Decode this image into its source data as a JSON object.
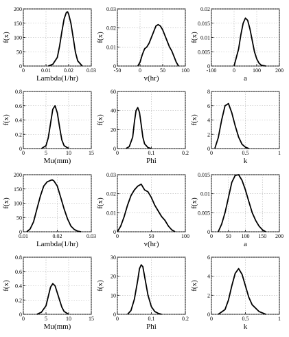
{
  "chart_data": [
    {
      "type": "line",
      "xlabel": "Lambda(1/hr)",
      "ylabel": "f(x)",
      "xlim": [
        0,
        0.03
      ],
      "ylim": [
        0,
        200
      ],
      "xticks": [
        "0",
        "0.01",
        "0.02",
        "0.03"
      ],
      "yticks": [
        "0",
        "50",
        "100",
        "150",
        "200"
      ],
      "grid": true,
      "x": [
        0.011,
        0.013,
        0.015,
        0.016,
        0.017,
        0.018,
        0.019,
        0.0195,
        0.02,
        0.021,
        0.022,
        0.023,
        0.024,
        0.026
      ],
      "y": [
        0,
        6,
        30,
        70,
        120,
        165,
        188,
        190,
        182,
        150,
        100,
        48,
        18,
        0
      ]
    },
    {
      "type": "line",
      "xlabel": "v(hr)",
      "ylabel": "f(x)",
      "xlim": [
        -50,
        100
      ],
      "ylim": [
        0,
        0.03
      ],
      "xticks": [
        "-50",
        "0",
        "50",
        "100"
      ],
      "yticks": [
        "0",
        "0.01",
        "0.02",
        "0.03"
      ],
      "grid": true,
      "x": [
        -5,
        0,
        5,
        10,
        15,
        20,
        25,
        30,
        35,
        40,
        45,
        50,
        55,
        60,
        65,
        70,
        75,
        80,
        85
      ],
      "y": [
        0,
        0.002,
        0.006,
        0.009,
        0.01,
        0.012,
        0.015,
        0.018,
        0.021,
        0.0218,
        0.021,
        0.019,
        0.016,
        0.013,
        0.01,
        0.008,
        0.005,
        0.002,
        0
      ]
    },
    {
      "type": "line",
      "xlabel": "a",
      "ylabel": "f(x)",
      "xlim": [
        -100,
        200
      ],
      "ylim": [
        0,
        0.02
      ],
      "xticks": [
        "-100",
        "0",
        "100",
        "200"
      ],
      "yticks": [
        "0",
        "0.005",
        "0.01",
        "0.015",
        "0.02"
      ],
      "grid": true,
      "x": [
        0,
        10,
        20,
        30,
        40,
        50,
        60,
        70,
        80,
        90,
        100,
        110,
        120,
        140
      ],
      "y": [
        0,
        0.003,
        0.006,
        0.011,
        0.015,
        0.0168,
        0.016,
        0.013,
        0.009,
        0.005,
        0.0025,
        0.001,
        0.0003,
        0
      ]
    },
    {
      "type": "line",
      "xlabel": "Mu(mm)",
      "ylabel": "f(x)",
      "xlim": [
        0,
        15
      ],
      "ylim": [
        0,
        0.8
      ],
      "xticks": [
        "0",
        "5",
        "10",
        "15"
      ],
      "yticks": [
        "0",
        "0.2",
        "0.4",
        "0.6",
        "0.8"
      ],
      "grid": true,
      "x": [
        4,
        5,
        5.5,
        6,
        6.5,
        7,
        7.5,
        8,
        8.5,
        9,
        10
      ],
      "y": [
        0,
        0.04,
        0.15,
        0.35,
        0.55,
        0.6,
        0.5,
        0.3,
        0.12,
        0.04,
        0
      ]
    },
    {
      "type": "line",
      "xlabel": "Phi",
      "ylabel": "f(x)",
      "xlim": [
        0,
        0.2
      ],
      "ylim": [
        0,
        60
      ],
      "xticks": [
        "0",
        "0.1",
        "0.2"
      ],
      "yticks": [
        "0",
        "20",
        "40",
        "60"
      ],
      "grid": true,
      "x": [
        0.025,
        0.035,
        0.045,
        0.05,
        0.055,
        0.06,
        0.065,
        0.07,
        0.075,
        0.08,
        0.09,
        0.1
      ],
      "y": [
        0,
        2,
        12,
        28,
        40,
        43,
        38,
        25,
        12,
        5,
        1,
        0
      ]
    },
    {
      "type": "line",
      "xlabel": "k",
      "ylabel": "f(x)",
      "xlim": [
        0,
        1
      ],
      "ylim": [
        0,
        8
      ],
      "xticks": [
        "0",
        "0.5",
        "1"
      ],
      "yticks": [
        "0",
        "2",
        "4",
        "6",
        "8"
      ],
      "grid": true,
      "x": [
        0.05,
        0.1,
        0.15,
        0.2,
        0.25,
        0.3,
        0.35,
        0.4,
        0.45,
        0.5,
        0.55
      ],
      "y": [
        0,
        1.5,
        4,
        6,
        6.3,
        5,
        3.2,
        1.6,
        0.6,
        0.2,
        0
      ]
    },
    {
      "type": "line",
      "xlabel": "Lambda(1/hr)",
      "ylabel": "f(x)",
      "xlim": [
        0.01,
        0.03
      ],
      "ylim": [
        0,
        200
      ],
      "xticks": [
        "0.01",
        "0.02",
        "0.03"
      ],
      "yticks": [
        "0",
        "50",
        "100",
        "150",
        "200"
      ],
      "grid": true,
      "x": [
        0.011,
        0.012,
        0.013,
        0.014,
        0.015,
        0.016,
        0.017,
        0.018,
        0.0185,
        0.019,
        0.02,
        0.021,
        0.022,
        0.023,
        0.024,
        0.025,
        0.026,
        0.027
      ],
      "y": [
        0,
        10,
        35,
        80,
        125,
        160,
        175,
        180,
        182,
        178,
        160,
        120,
        80,
        45,
        20,
        8,
        2,
        0
      ]
    },
    {
      "type": "line",
      "xlabel": "v(hr)",
      "ylabel": "f(x)",
      "xlim": [
        0,
        100
      ],
      "ylim": [
        0,
        0.03
      ],
      "xticks": [
        "0",
        "50",
        "100"
      ],
      "yticks": [
        "0",
        "0.01",
        "0.02",
        "0.03"
      ],
      "grid": true,
      "x": [
        0,
        5,
        10,
        15,
        20,
        25,
        30,
        35,
        40,
        45,
        50,
        55,
        60,
        65,
        70,
        75,
        80,
        85
      ],
      "y": [
        0,
        0.003,
        0.008,
        0.014,
        0.019,
        0.022,
        0.024,
        0.025,
        0.022,
        0.021,
        0.018,
        0.014,
        0.011,
        0.008,
        0.006,
        0.003,
        0.001,
        0
      ]
    },
    {
      "type": "line",
      "xlabel": "a",
      "ylabel": "f(x)",
      "xlim": [
        0,
        200
      ],
      "ylim": [
        0,
        0.015
      ],
      "xticks": [
        "0",
        "50",
        "100",
        "150",
        "200"
      ],
      "yticks": [
        "0",
        "0.005",
        "0.01",
        "0.015"
      ],
      "grid": true,
      "x": [
        20,
        30,
        40,
        50,
        60,
        70,
        80,
        90,
        100,
        110,
        120,
        130,
        140,
        150,
        160
      ],
      "y": [
        0,
        0.002,
        0.005,
        0.009,
        0.013,
        0.0148,
        0.015,
        0.0135,
        0.011,
        0.008,
        0.005,
        0.003,
        0.0015,
        0.0005,
        0
      ]
    },
    {
      "type": "line",
      "xlabel": "Mu(mm)",
      "ylabel": "f(x)",
      "xlim": [
        0,
        15
      ],
      "ylim": [
        0,
        0.8
      ],
      "xticks": [
        "0",
        "5",
        "10",
        "15"
      ],
      "yticks": [
        "0",
        "0.2",
        "0.4",
        "0.6",
        "0.8"
      ],
      "grid": true,
      "x": [
        3,
        4,
        5,
        5.5,
        6,
        6.5,
        7,
        7.5,
        8,
        8.5,
        9,
        10
      ],
      "y": [
        0,
        0.03,
        0.12,
        0.25,
        0.38,
        0.43,
        0.4,
        0.3,
        0.2,
        0.1,
        0.04,
        0
      ]
    },
    {
      "type": "line",
      "xlabel": "Phi",
      "ylabel": "f(x)",
      "xlim": [
        0,
        0.2
      ],
      "ylim": [
        0,
        30
      ],
      "xticks": [
        "0",
        "0.1",
        "0.2"
      ],
      "yticks": [
        "0",
        "10",
        "20",
        "30"
      ],
      "grid": true,
      "x": [
        0.03,
        0.04,
        0.05,
        0.06,
        0.065,
        0.07,
        0.075,
        0.08,
        0.09,
        0.1,
        0.11,
        0.12,
        0.13
      ],
      "y": [
        0,
        2,
        8,
        18,
        24,
        26,
        25,
        20,
        10,
        4,
        1.5,
        0.5,
        0
      ]
    },
    {
      "type": "line",
      "xlabel": "k",
      "ylabel": "f(x)",
      "xlim": [
        0,
        1
      ],
      "ylim": [
        0,
        6
      ],
      "xticks": [
        "0",
        "0.5",
        "1"
      ],
      "yticks": [
        "0",
        "2",
        "4",
        "6"
      ],
      "grid": true,
      "x": [
        0.1,
        0.2,
        0.25,
        0.3,
        0.35,
        0.4,
        0.45,
        0.5,
        0.55,
        0.6,
        0.7,
        0.8
      ],
      "y": [
        0,
        0.5,
        1.5,
        3,
        4.3,
        4.8,
        4.2,
        3,
        1.8,
        1,
        0.3,
        0
      ]
    }
  ]
}
